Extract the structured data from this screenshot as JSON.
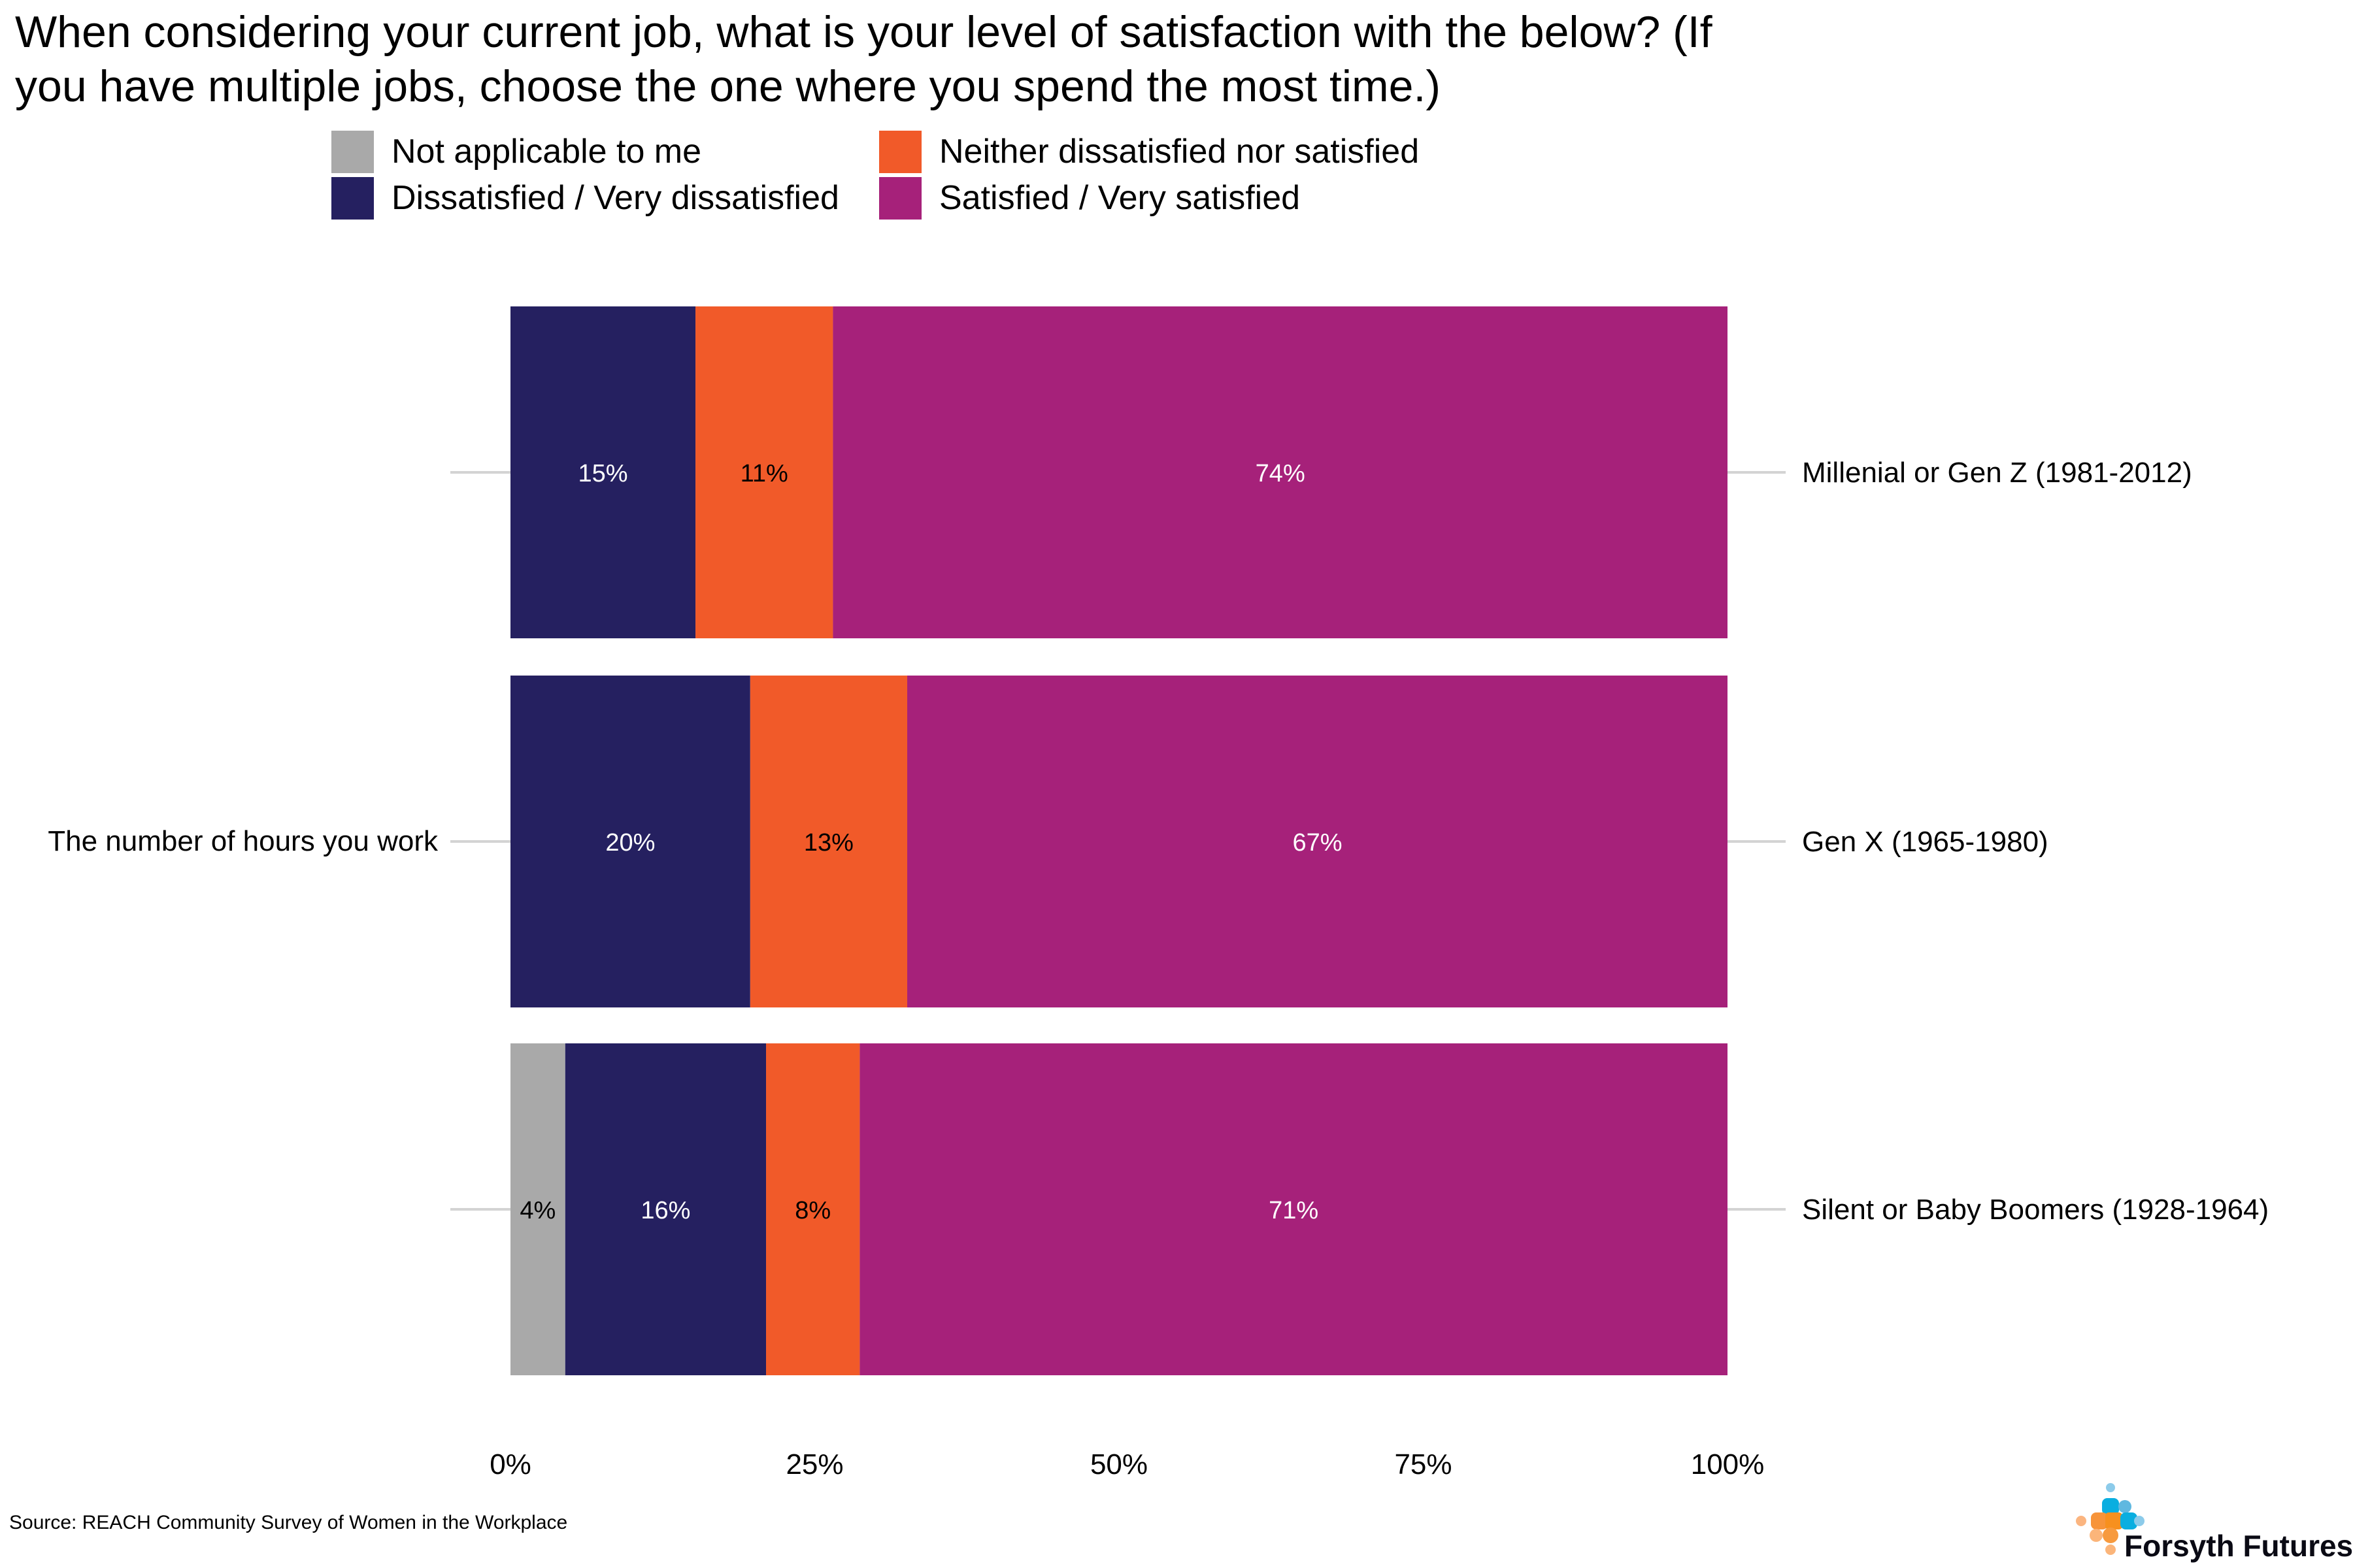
{
  "chart_data": {
    "type": "bar",
    "orientation": "horizontal",
    "stacked": true,
    "title": "When considering your current job, what is your level of satisfaction with the below? (If you have multiple jobs, choose the one where you spend the most time.)",
    "title_lines": [
      "When considering your current job, what is your level of satisfaction with the below? (If",
      "you have multiple jobs, choose the one where you spend the most time.)"
    ],
    "left_label": "The number of hours you work",
    "categories": [
      "Millenial or Gen Z (1981-2012)",
      "Gen X (1965-1980)",
      "Silent or Baby Boomers (1928-1964)"
    ],
    "series": [
      {
        "name": "Not applicable to me",
        "color": "#a9a9a9",
        "label_color": "#000000",
        "values": [
          0,
          0,
          4.5
        ],
        "labels": [
          "",
          "",
          "4%"
        ]
      },
      {
        "name": "Dissatisfied / Very dissatisfied",
        "color": "#252060",
        "label_color": "#ffffff",
        "values": [
          15.2,
          19.7,
          16.5
        ],
        "labels": [
          "15%",
          "20%",
          "16%"
        ]
      },
      {
        "name": "Neither dissatisfied nor satisfied",
        "color": "#f15a29",
        "label_color": "#000000",
        "values": [
          11.3,
          12.9,
          7.7
        ],
        "labels": [
          "11%",
          "13%",
          "8%"
        ]
      },
      {
        "name": "Satisfied / Very satisfied",
        "color": "#a6217a",
        "label_color": "#ffffff",
        "values": [
          73.5,
          67.4,
          71.3
        ],
        "labels": [
          "74%",
          "67%",
          "71%"
        ]
      }
    ],
    "legend_order": [
      0,
      2,
      1,
      3
    ],
    "legend_position": "top",
    "xlim": [
      0,
      100
    ],
    "x_ticks": [
      "0%",
      "25%",
      "50%",
      "75%",
      "100%"
    ],
    "grid": false
  },
  "source": "Source: REACH Community Survey of Women in the Workplace",
  "logo_text": "Forsyth Futures"
}
